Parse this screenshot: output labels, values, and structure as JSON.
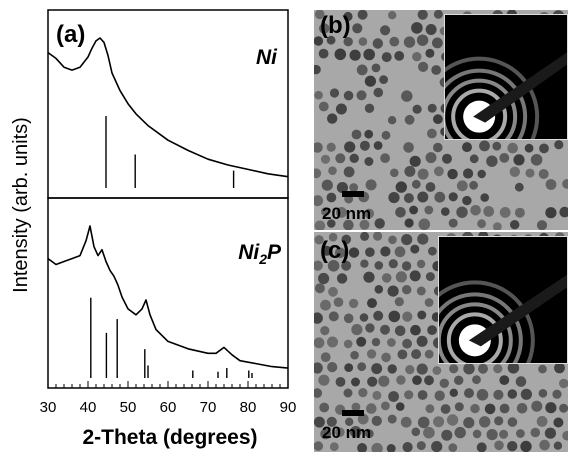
{
  "figure": {
    "panels": {
      "a": {
        "label": "(a)"
      },
      "b": {
        "label": "(b)",
        "scale_bar": "20 nm"
      },
      "c": {
        "label": "(c)",
        "scale_bar": "20 nm"
      }
    }
  },
  "chart_data": {
    "type": "line",
    "xlabel": "2-Theta (degrees)",
    "ylabel": "Intensity (arb. units)",
    "xlim": [
      30,
      90
    ],
    "xticks": [
      30,
      40,
      50,
      60,
      70,
      80,
      90
    ],
    "subplots": [
      {
        "name": "Ni",
        "pattern": {
          "x": [
            30,
            32,
            34,
            36,
            38,
            40,
            41,
            42,
            43,
            44,
            45,
            46,
            48,
            50,
            52,
            55,
            60,
            65,
            70,
            75,
            80,
            85,
            90
          ],
          "y": [
            0.9,
            0.86,
            0.8,
            0.78,
            0.8,
            0.87,
            0.93,
            0.98,
            1.0,
            0.97,
            0.88,
            0.76,
            0.64,
            0.55,
            0.48,
            0.4,
            0.3,
            0.23,
            0.17,
            0.13,
            0.1,
            0.07,
            0.05
          ]
        },
        "reference_lines": [
          {
            "x": 44.5,
            "h": 0.58
          },
          {
            "x": 51.8,
            "h": 0.27
          },
          {
            "x": 76.4,
            "h": 0.14
          }
        ]
      },
      {
        "name": "Ni2P",
        "pattern": {
          "x": [
            30,
            32,
            34,
            36,
            38,
            39.5,
            40.5,
            41.5,
            42.5,
            43.5,
            44.5,
            45.5,
            46.5,
            47.5,
            48.5,
            50,
            52,
            53.5,
            54.5,
            55.5,
            57,
            60,
            65,
            70,
            72,
            74,
            76,
            78,
            82,
            86,
            90
          ],
          "y": [
            0.78,
            0.74,
            0.76,
            0.78,
            0.8,
            0.9,
            1.0,
            0.86,
            0.8,
            0.84,
            0.76,
            0.7,
            0.66,
            0.6,
            0.52,
            0.44,
            0.4,
            0.44,
            0.5,
            0.4,
            0.3,
            0.22,
            0.17,
            0.14,
            0.14,
            0.18,
            0.13,
            0.09,
            0.07,
            0.05,
            0.04
          ]
        },
        "reference_lines": [
          {
            "x": 40.7,
            "h": 0.64
          },
          {
            "x": 44.6,
            "h": 0.36
          },
          {
            "x": 47.3,
            "h": 0.47
          },
          {
            "x": 54.2,
            "h": 0.23
          },
          {
            "x": 55.0,
            "h": 0.1
          },
          {
            "x": 66.2,
            "h": 0.06
          },
          {
            "x": 72.5,
            "h": 0.05
          },
          {
            "x": 74.7,
            "h": 0.08
          },
          {
            "x": 80.2,
            "h": 0.06
          },
          {
            "x": 81.0,
            "h": 0.04
          }
        ]
      }
    ]
  },
  "colors": {
    "tem_background": "#a8a8a8",
    "particle": "#5a5a5a",
    "inset_background": "#000000"
  }
}
